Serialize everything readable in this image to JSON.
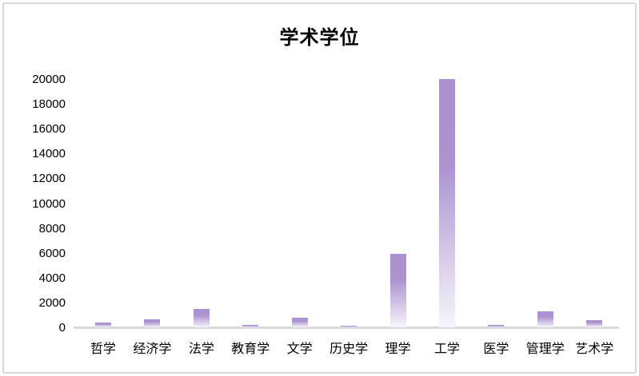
{
  "window": {
    "background_color": "#ffffff",
    "border_color": "#d9d9d9"
  },
  "chart_data": {
    "type": "bar",
    "title": "学术学位",
    "categories": [
      "哲学",
      "经济学",
      "法学",
      "教育学",
      "文学",
      "历史学",
      "理学",
      "工学",
      "医学",
      "管理学",
      "艺术学"
    ],
    "values": [
      400,
      650,
      1450,
      200,
      800,
      150,
      5900,
      20000,
      200,
      1300,
      550
    ],
    "xlabel": "",
    "ylabel": "",
    "ylim": [
      0,
      20000
    ],
    "yticks": [
      0,
      2000,
      4000,
      6000,
      8000,
      10000,
      12000,
      14000,
      16000,
      18000,
      20000
    ],
    "grid": false,
    "legend": "none",
    "bar_color_top": "#aa92d0",
    "bar_color_bottom": "#f7f5fa",
    "axis_line_color": "#d9d9d9",
    "text_color": "#000000",
    "title_color": "#000000"
  }
}
